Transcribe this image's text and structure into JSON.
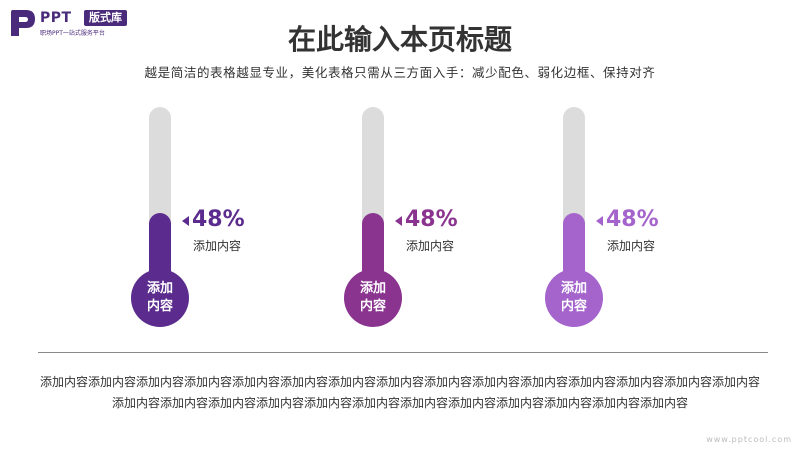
{
  "logo": {
    "brand": "PPT",
    "badge": "版式库",
    "slogan": "职场PPT一站式服务平台"
  },
  "page_title": "在此输入本页标题",
  "subtitle": "越是简洁的表格越显专业，美化表格只需从三方面入手：减少配色、弱化边框、保持对齐",
  "colors": {
    "title": "#333333",
    "tube_bg": "#dcdcdc",
    "divider": "#8a8a8a"
  },
  "thermometers": [
    {
      "value_text": "48%",
      "level": 0.48,
      "label": "添加内容",
      "bulb_line1": "添加",
      "bulb_line2": "内容",
      "color": "#5b2c8e"
    },
    {
      "value_text": "48%",
      "level": 0.48,
      "label": "添加内容",
      "bulb_line1": "添加",
      "bulb_line2": "内容",
      "color": "#8a3490"
    },
    {
      "value_text": "48%",
      "level": 0.48,
      "label": "添加内容",
      "bulb_line1": "添加",
      "bulb_line2": "内容",
      "color": "#a464cc"
    }
  ],
  "body_text": "添加内容添加内容添加内容添加内容添加内容添加内容添加内容添加内容添加内容添加内容添加内容添加内容添加内容添加内容添加内容添加内容添加内容添加内容添加内容添加内容添加内容添加内容添加内容添加内容添加内容添加内容添加内容",
  "watermark": "www.pptcool.com"
}
